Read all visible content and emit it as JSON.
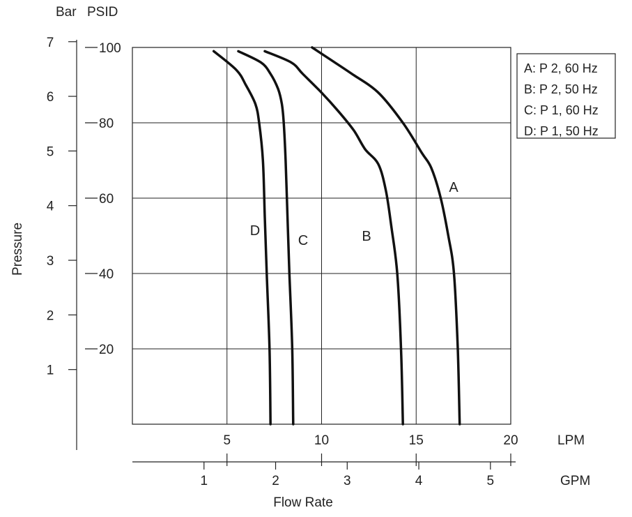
{
  "chart_data": {
    "type": "line",
    "xlabel": "Flow Rate",
    "ylabel": "Pressure",
    "x_axis_lpm": {
      "unit": "LPM",
      "ticks": [
        5,
        10,
        15,
        20
      ],
      "range": [
        0,
        20
      ]
    },
    "x_axis_gpm": {
      "unit": "GPM",
      "ticks": [
        1,
        2,
        3,
        4,
        5
      ],
      "range": [
        0,
        5.28
      ]
    },
    "y_axis_psid": {
      "unit": "PSID",
      "ticks": [
        20,
        40,
        60,
        80,
        100
      ],
      "range": [
        0,
        100
      ]
    },
    "y_axis_bar": {
      "unit": "Bar",
      "ticks": [
        1,
        2,
        3,
        4,
        5,
        6,
        7
      ],
      "range": [
        0,
        7
      ]
    },
    "grid": true,
    "legend": {
      "position": "top-right",
      "entries": [
        "A: P 2, 60 Hz",
        "B: P 2, 50 Hz",
        "C: P 1, 60 Hz",
        "D: P 1, 50 Hz"
      ]
    },
    "series": [
      {
        "name": "A: P 2, 60 Hz",
        "label": "A",
        "x": [
          17.3,
          17.2,
          17.0,
          16.7,
          16.3,
          15.8,
          15.3,
          14.3,
          13.0,
          11.6,
          10.4,
          9.8,
          9.5
        ],
        "y": [
          0,
          20,
          40,
          50,
          60,
          68,
          72,
          80,
          88,
          93,
          97,
          99,
          100
        ]
      },
      {
        "name": "B: P 2, 50 Hz",
        "label": "B",
        "x": [
          14.3,
          14.2,
          14.0,
          13.7,
          13.4,
          13.0,
          12.3,
          11.7,
          10.9,
          10.0,
          9.0,
          8.4,
          7.0
        ],
        "y": [
          0,
          20,
          40,
          52,
          62,
          69,
          73,
          78,
          83,
          88,
          93,
          96,
          99
        ]
      },
      {
        "name": "C: P 1, 60 Hz",
        "label": "C",
        "x": [
          8.5,
          8.45,
          8.3,
          8.2,
          8.1,
          8.0,
          7.9,
          7.7,
          7.3,
          6.8,
          5.6
        ],
        "y": [
          0,
          20,
          40,
          55,
          70,
          80,
          85,
          89,
          93,
          96,
          99
        ]
      },
      {
        "name": "D: P 1, 50 Hz",
        "label": "D",
        "x": [
          7.3,
          7.25,
          7.1,
          7.0,
          6.9,
          6.7,
          6.5,
          6.0,
          5.5,
          4.3
        ],
        "y": [
          0,
          20,
          40,
          55,
          70,
          80,
          85,
          90,
          94,
          99
        ]
      }
    ]
  }
}
